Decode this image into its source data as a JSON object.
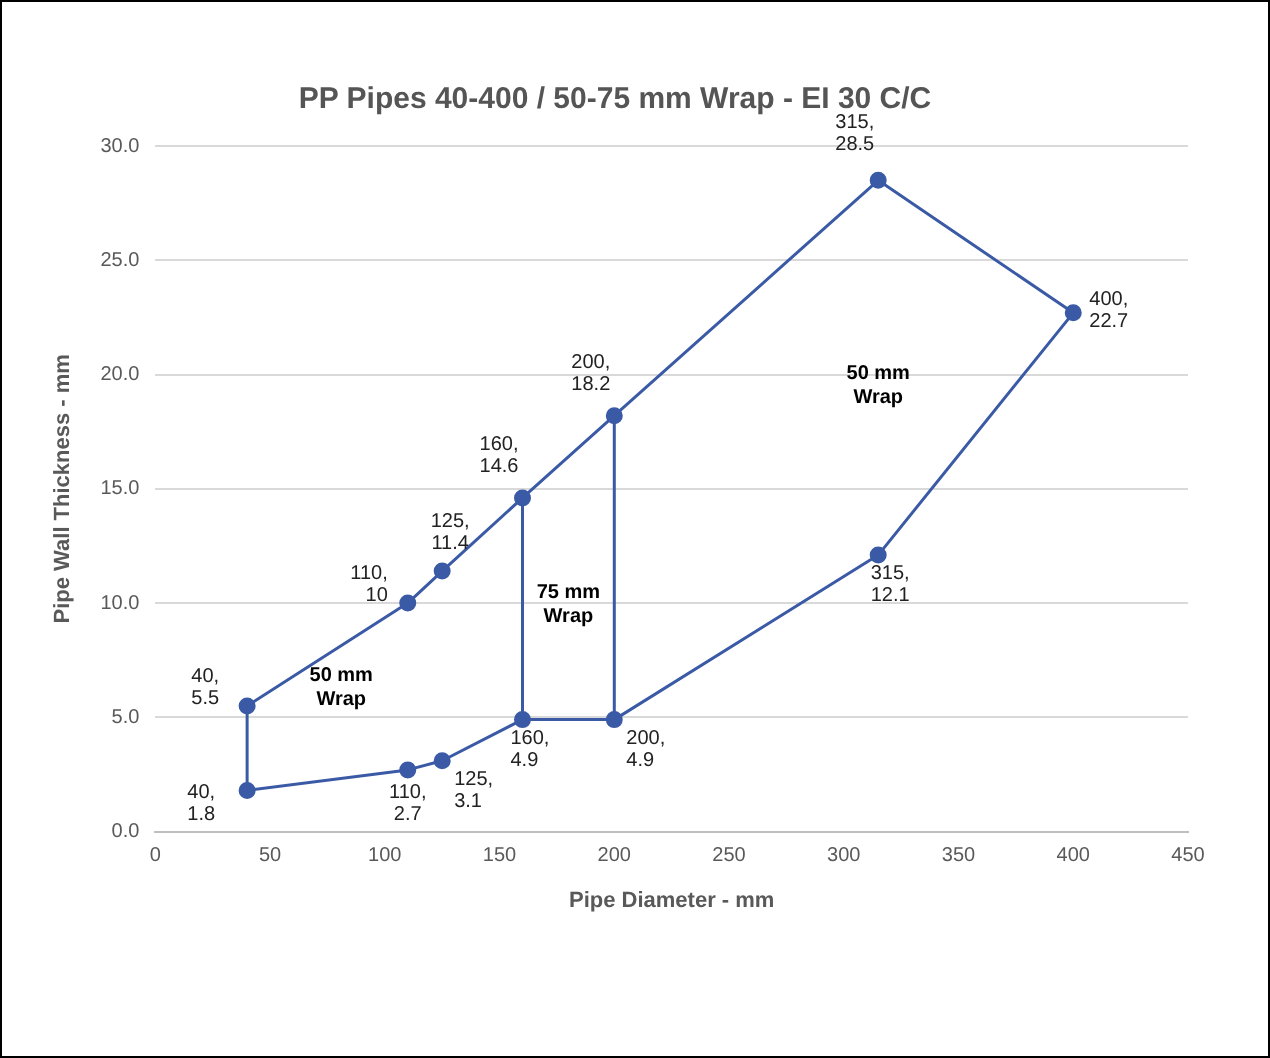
{
  "chart_data": {
    "type": "line",
    "title": "PP Pipes 40-400 / 50-75 mm Wrap - EI 30 C/C",
    "xlabel": "Pipe Diameter - mm",
    "ylabel": "Pipe Wall Thickness - mm",
    "xlim": [
      0,
      450
    ],
    "xticks": [
      0,
      50,
      100,
      150,
      200,
      250,
      300,
      350,
      400,
      450
    ],
    "ylim": [
      0,
      30
    ],
    "yticks": [
      {
        "value": 0,
        "label": "0.0"
      },
      {
        "value": 5,
        "label": "5.0"
      },
      {
        "value": 10,
        "label": "10.0"
      },
      {
        "value": 15,
        "label": "15.0"
      },
      {
        "value": 20,
        "label": "20.0"
      },
      {
        "value": 25,
        "label": "25.0"
      },
      {
        "value": 30,
        "label": "30.0"
      }
    ],
    "grid": "y",
    "legend": false,
    "line_style": "solid",
    "marker": "circle",
    "series": [
      {
        "color": "#3b5aa6",
        "x": [
          40,
          40,
          110,
          125,
          160,
          200,
          315,
          400,
          315,
          200,
          160,
          125,
          110
        ],
        "values": [
          1.8,
          5.5,
          10,
          11.4,
          14.6,
          18.2,
          28.5,
          22.7,
          12.1,
          4.9,
          4.9,
          3.1,
          2.7
        ],
        "value_labels": [
          "40,\n1.8",
          "40,\n5.5",
          "110,\n10",
          "125,\n11.4",
          "160,\n14.6",
          "200,\n18.2",
          "315,\n28.5",
          "400,\n22.7",
          "315,\n12.1",
          "200,\n4.9",
          "160,\n4.9",
          "125,\n3.1",
          "110,\n2.7"
        ]
      },
      {
        "color": "#3b5aa6",
        "marker": "none",
        "x": [
          110,
          40
        ],
        "values": [
          2.7,
          1.8
        ]
      },
      {
        "color": "#3b5aa6",
        "marker": "none",
        "x": [
          160,
          160
        ],
        "values": [
          14.6,
          4.9
        ]
      },
      {
        "color": "#3b5aa6",
        "marker": "none",
        "x": [
          200,
          200
        ],
        "values": [
          18.2,
          4.9
        ]
      }
    ],
    "annotations": [
      "50 mm\nWrap",
      "75 mm\nWrap",
      "50 mm\nWrap"
    ]
  }
}
